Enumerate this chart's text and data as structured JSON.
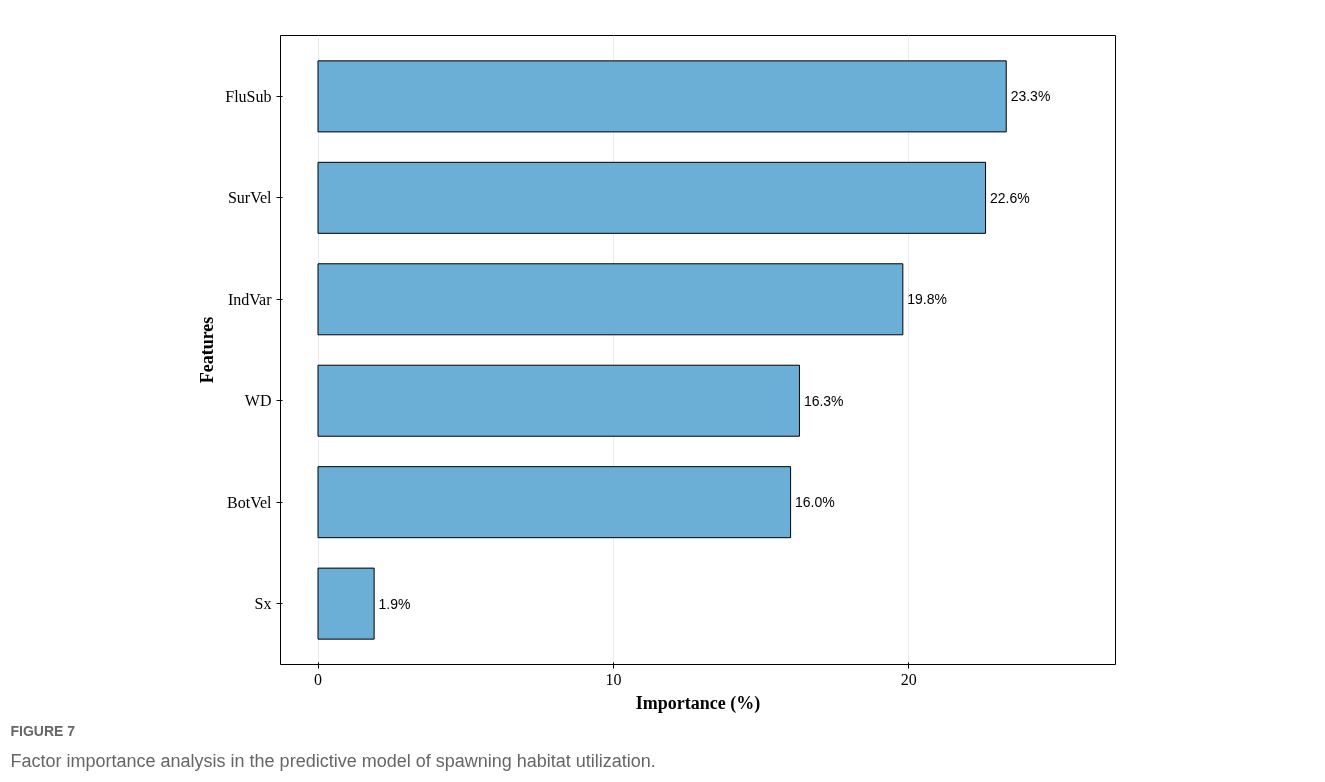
{
  "chart_data": {
    "type": "bar",
    "orientation": "horizontal",
    "xlabel": "Importance (%)",
    "ylabel": "Features",
    "categories": [
      "FluSub",
      "SurVel",
      "IndVar",
      "WD",
      "BotVel",
      "Sx"
    ],
    "values": [
      23.3,
      22.6,
      19.8,
      16.3,
      16.0,
      1.9
    ],
    "value_labels": [
      "23.3%",
      "22.6%",
      "19.8%",
      "16.3%",
      "16.0%",
      "1.9%"
    ],
    "color": "#6baed6",
    "xlim": [
      -1.27,
      27.0
    ],
    "xticks": [
      0,
      10,
      20
    ],
    "grid": "x",
    "annotations": [
      "FIGURE 7",
      "Factor importance analysis in the predictive model of spawning habitat utilization."
    ]
  }
}
